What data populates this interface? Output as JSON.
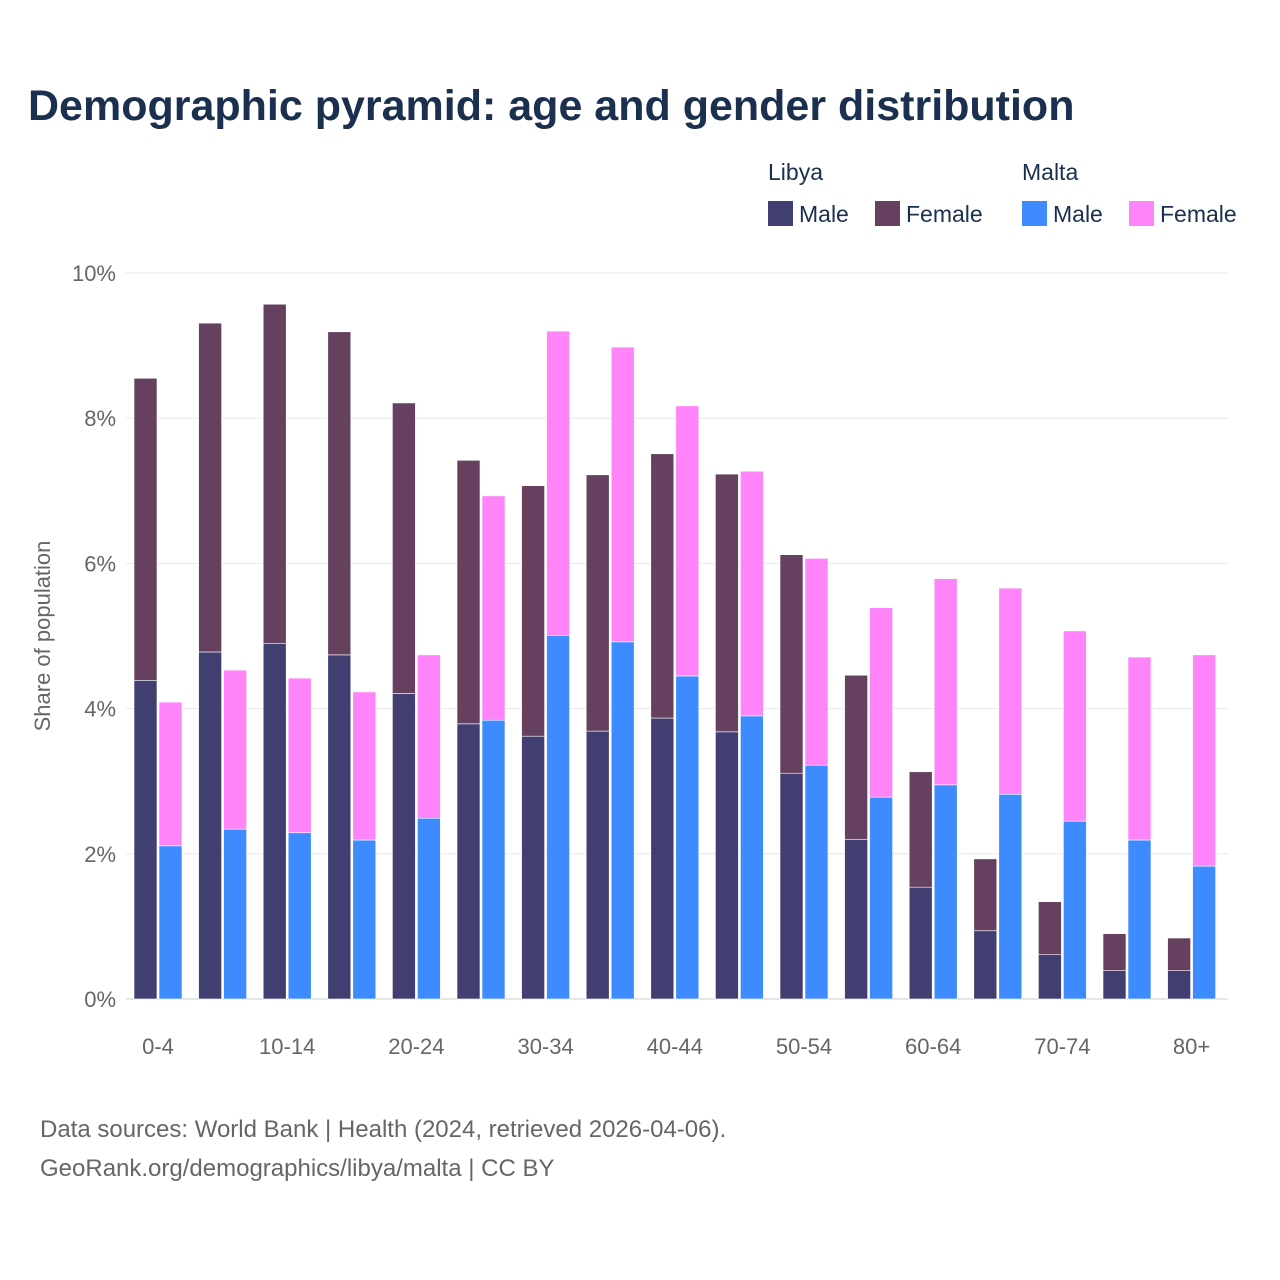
{
  "title": "Demographic pyramid: age and gender distribution",
  "footer": {
    "line1": "Data sources: World Bank | Health (2024, retrieved 2026-04-06).",
    "line2": "GeoRank.org/demographics/libya/malta | CC BY"
  },
  "chart_data": {
    "type": "bar",
    "stacked": true,
    "title": "Demographic pyramid: age and gender distribution",
    "xlabel": "",
    "ylabel": "Share of population",
    "ylim": [
      0,
      10
    ],
    "y_ticks": [
      "0%",
      "2%",
      "4%",
      "6%",
      "8%",
      "10%"
    ],
    "y_tick_values": [
      0,
      2,
      4,
      6,
      8,
      10
    ],
    "grid": true,
    "legend_placement": "top-right",
    "categories": [
      "0-4",
      "5-9",
      "10-14",
      "15-19",
      "20-24",
      "25-29",
      "30-34",
      "35-39",
      "40-44",
      "45-49",
      "50-54",
      "55-59",
      "60-64",
      "65-69",
      "70-74",
      "75-79",
      "80+"
    ],
    "x_tick_labels": [
      "0-4",
      "10-14",
      "20-24",
      "30-34",
      "40-44",
      "50-54",
      "60-64",
      "70-74",
      "80+"
    ],
    "groups": [
      {
        "name": "Libya",
        "series": [
          {
            "name": "Male",
            "color": "#413f72",
            "values": [
              4.39,
              4.78,
              4.9,
              4.74,
              4.21,
              3.79,
              3.62,
              3.69,
              3.87,
              3.68,
              3.11,
              2.2,
              1.54,
              0.94,
              0.61,
              0.39,
              0.39
            ]
          },
          {
            "name": "Female",
            "color": "#66405f",
            "values": [
              4.16,
              4.53,
              4.67,
              4.45,
              4.0,
              3.63,
              3.45,
              3.53,
              3.64,
              3.55,
              3.01,
              2.26,
              1.59,
              0.99,
              0.73,
              0.51,
              0.45
            ]
          }
        ]
      },
      {
        "name": "Malta",
        "series": [
          {
            "name": "Male",
            "color": "#3d8bff",
            "values": [
              2.11,
              2.34,
              2.29,
              2.19,
              2.49,
              3.84,
              5.01,
              4.92,
              4.45,
              3.9,
              3.22,
              2.78,
              2.95,
              2.82,
              2.45,
              2.19,
              1.83
            ]
          },
          {
            "name": "Female",
            "color": "#ff84fa",
            "values": [
              1.98,
              2.19,
              2.13,
              2.04,
              2.25,
              3.09,
              4.19,
              4.06,
              3.72,
              3.37,
              2.85,
              2.61,
              2.84,
              2.84,
              2.62,
              2.52,
              2.91
            ]
          }
        ]
      }
    ]
  }
}
